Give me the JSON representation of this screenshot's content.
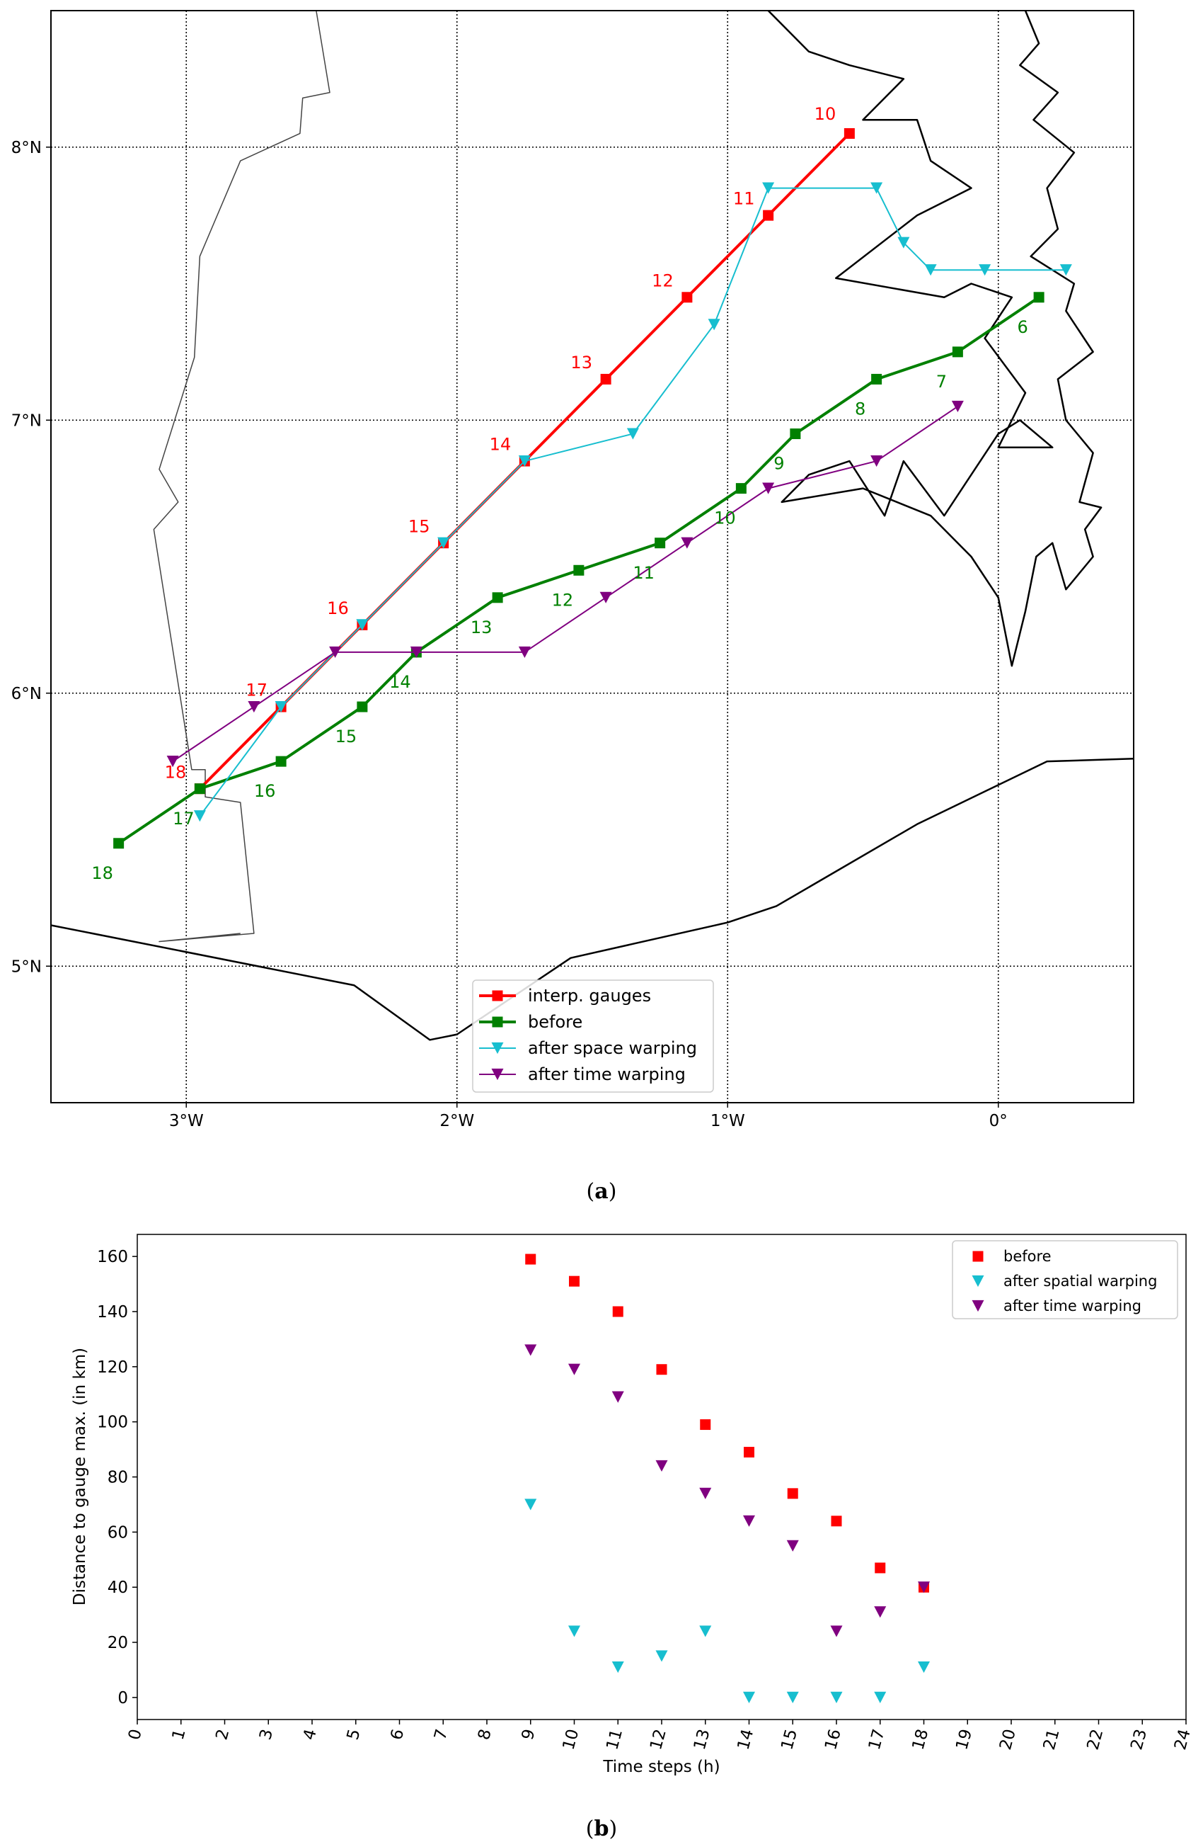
{
  "chart_data": [
    {
      "id": "a",
      "type": "line",
      "caption": {
        "open": "(",
        "letter": "a",
        "close": ")"
      },
      "xlim": [
        -3.5,
        0.5
      ],
      "ylim": [
        4.5,
        8.5
      ],
      "grid": true,
      "x_ticks": [
        {
          "value": -3,
          "label": "3°W"
        },
        {
          "value": -2,
          "label": "2°W"
        },
        {
          "value": -1,
          "label": "1°W"
        },
        {
          "value": 0,
          "label": "0°"
        }
      ],
      "y_ticks": [
        {
          "value": 5,
          "label": "5°N"
        },
        {
          "value": 6,
          "label": "6°N"
        },
        {
          "value": 7,
          "label": "7°N"
        },
        {
          "value": 8,
          "label": "8°N"
        }
      ],
      "legend_position": "lower-center",
      "series": [
        {
          "name": "interp. gauges",
          "color": "#ff0000",
          "marker": "square",
          "width": 4,
          "x": [
            -0.55,
            -0.85,
            -1.15,
            -1.45,
            -1.75,
            -2.05,
            -2.35,
            -2.65,
            -2.95
          ],
          "y": [
            8.05,
            7.75,
            7.45,
            7.15,
            6.85,
            6.55,
            6.25,
            5.95,
            5.65
          ]
        },
        {
          "name": "before",
          "color": "#008000",
          "marker": "square",
          "width": 4,
          "x": [
            0.15,
            -0.15,
            -0.45,
            -0.75,
            -0.95,
            -1.25,
            -1.55,
            -1.85,
            -2.15,
            -2.35,
            -2.65,
            -2.95,
            -3.25
          ],
          "y": [
            7.45,
            7.25,
            7.15,
            6.95,
            6.75,
            6.55,
            6.45,
            6.35,
            6.15,
            5.95,
            5.75,
            5.65,
            5.45
          ]
        },
        {
          "name": "after space warping",
          "color": "#17becf",
          "marker": "triangle-down",
          "width": 2,
          "x": [
            0.25,
            -0.05,
            -0.25,
            -0.35,
            -0.45,
            -0.85,
            -1.05,
            -1.35,
            -1.75,
            -2.05,
            -2.35,
            -2.65,
            -2.95
          ],
          "y": [
            7.55,
            7.55,
            7.55,
            7.65,
            7.85,
            7.85,
            7.35,
            6.95,
            6.85,
            6.55,
            6.25,
            5.95,
            5.55
          ]
        },
        {
          "name": "after time warping",
          "color": "#800080",
          "marker": "triangle-down",
          "width": 2,
          "x": [
            -0.15,
            -0.45,
            -0.85,
            -1.15,
            -1.45,
            -1.75,
            -2.15,
            -2.45,
            -2.75,
            -3.05
          ],
          "y": [
            7.05,
            6.85,
            6.75,
            6.55,
            6.35,
            6.15,
            6.15,
            6.15,
            5.95,
            5.75
          ]
        }
      ],
      "annotations": [
        {
          "text": "10",
          "x": -0.64,
          "y": 8.1,
          "color": "#ff0000"
        },
        {
          "text": "11",
          "x": -0.94,
          "y": 7.79,
          "color": "#ff0000"
        },
        {
          "text": "12",
          "x": -1.24,
          "y": 7.49,
          "color": "#ff0000"
        },
        {
          "text": "13",
          "x": -1.54,
          "y": 7.19,
          "color": "#ff0000"
        },
        {
          "text": "14",
          "x": -1.84,
          "y": 6.89,
          "color": "#ff0000"
        },
        {
          "text": "15",
          "x": -2.14,
          "y": 6.59,
          "color": "#ff0000"
        },
        {
          "text": "16",
          "x": -2.44,
          "y": 6.29,
          "color": "#ff0000"
        },
        {
          "text": "17",
          "x": -2.74,
          "y": 5.99,
          "color": "#ff0000"
        },
        {
          "text": "18",
          "x": -3.04,
          "y": 5.69,
          "color": "#ff0000"
        },
        {
          "text": "6",
          "x": 0.09,
          "y": 7.32,
          "color": "#008000"
        },
        {
          "text": "7",
          "x": -0.21,
          "y": 7.12,
          "color": "#008000"
        },
        {
          "text": "8",
          "x": -0.51,
          "y": 7.02,
          "color": "#008000"
        },
        {
          "text": "9",
          "x": -0.81,
          "y": 6.82,
          "color": "#008000"
        },
        {
          "text": "10",
          "x": -1.01,
          "y": 6.62,
          "color": "#008000"
        },
        {
          "text": "11",
          "x": -1.31,
          "y": 6.42,
          "color": "#008000"
        },
        {
          "text": "12",
          "x": -1.61,
          "y": 6.32,
          "color": "#008000"
        },
        {
          "text": "13",
          "x": -1.91,
          "y": 6.22,
          "color": "#008000"
        },
        {
          "text": "14",
          "x": -2.21,
          "y": 6.02,
          "color": "#008000"
        },
        {
          "text": "15",
          "x": -2.41,
          "y": 5.82,
          "color": "#008000"
        },
        {
          "text": "16",
          "x": -2.71,
          "y": 5.62,
          "color": "#008000"
        },
        {
          "text": "17",
          "x": -3.01,
          "y": 5.52,
          "color": "#008000"
        },
        {
          "text": "18",
          "x": -3.31,
          "y": 5.32,
          "color": "#008000"
        }
      ],
      "map_lines": [
        {
          "name": "western-border",
          "color": "#444444",
          "width": 1.5,
          "points": [
            [
              -2.52,
              8.5
            ],
            [
              -2.47,
              8.2
            ],
            [
              -2.57,
              8.18
            ],
            [
              -2.58,
              8.05
            ],
            [
              -2.8,
              7.95
            ],
            [
              -2.95,
              7.6
            ],
            [
              -2.97,
              7.23
            ],
            [
              -3.1,
              6.82
            ],
            [
              -3.03,
              6.7
            ],
            [
              -3.12,
              6.6
            ],
            [
              -2.98,
              5.72
            ],
            [
              -2.93,
              5.72
            ],
            [
              -2.93,
              5.62
            ],
            [
              -2.8,
              5.6
            ],
            [
              -2.75,
              5.12
            ],
            [
              -3.1,
              5.09
            ],
            [
              -2.8,
              5.12
            ]
          ]
        },
        {
          "name": "coastline",
          "color": "#000000",
          "width": 2.5,
          "points": [
            [
              -3.5,
              5.15
            ],
            [
              -2.38,
              4.93
            ],
            [
              -2.1,
              4.73
            ],
            [
              -2.0,
              4.75
            ],
            [
              -1.58,
              5.03
            ],
            [
              -1.0,
              5.16
            ],
            [
              -0.82,
              5.22
            ],
            [
              -0.3,
              5.52
            ],
            [
              0.18,
              5.75
            ],
            [
              0.5,
              5.76
            ]
          ]
        },
        {
          "name": "eastern-border",
          "color": "#000000",
          "width": 2.5,
          "points": [
            [
              0.1,
              8.5
            ],
            [
              0.15,
              8.38
            ],
            [
              0.08,
              8.3
            ],
            [
              0.22,
              8.2
            ],
            [
              0.13,
              8.1
            ],
            [
              0.28,
              7.98
            ],
            [
              0.18,
              7.85
            ],
            [
              0.22,
              7.7
            ],
            [
              0.12,
              7.6
            ],
            [
              0.28,
              7.5
            ],
            [
              0.25,
              7.4
            ],
            [
              0.35,
              7.25
            ],
            [
              0.22,
              7.15
            ],
            [
              0.25,
              7.0
            ],
            [
              0.35,
              6.88
            ],
            [
              0.3,
              6.7
            ],
            [
              0.38,
              6.68
            ],
            [
              0.32,
              6.6
            ],
            [
              0.35,
              6.5
            ],
            [
              0.25,
              6.38
            ],
            [
              0.2,
              6.55
            ],
            [
              0.14,
              6.5
            ],
            [
              0.1,
              6.3
            ],
            [
              0.05,
              6.1
            ],
            [
              0.0,
              6.35
            ],
            [
              -0.1,
              6.5
            ],
            [
              -0.25,
              6.65
            ],
            [
              -0.5,
              6.75
            ],
            [
              -0.8,
              6.7
            ],
            [
              -0.7,
              6.8
            ],
            [
              -0.55,
              6.85
            ],
            [
              -0.42,
              6.65
            ],
            [
              -0.35,
              6.85
            ],
            [
              -0.2,
              6.65
            ],
            [
              -0.1,
              6.8
            ],
            [
              0.0,
              6.95
            ],
            [
              0.08,
              7.0
            ],
            [
              0.2,
              6.9
            ],
            [
              0.0,
              6.9
            ],
            [
              0.1,
              7.1
            ],
            [
              -0.05,
              7.3
            ],
            [
              0.05,
              7.45
            ],
            [
              -0.1,
              7.5
            ],
            [
              -0.2,
              7.45
            ],
            [
              -0.6,
              7.52
            ],
            [
              -0.3,
              7.75
            ],
            [
              -0.1,
              7.85
            ],
            [
              -0.25,
              7.95
            ],
            [
              -0.3,
              8.1
            ],
            [
              -0.5,
              8.1
            ],
            [
              -0.35,
              8.25
            ],
            [
              -0.55,
              8.3
            ],
            [
              -0.7,
              8.35
            ],
            [
              -0.85,
              8.5
            ]
          ]
        }
      ]
    },
    {
      "id": "b",
      "type": "scatter",
      "caption": {
        "open": "(",
        "letter": "b",
        "close": ")"
      },
      "xlabel": "Time steps (h)",
      "ylabel": "Distance to gauge max. (in km)",
      "xlim": [
        0,
        24
      ],
      "ylim": [
        -8,
        168
      ],
      "x_ticks": [
        "0",
        "1",
        "2",
        "3",
        "4",
        "5",
        "6",
        "7",
        "8",
        "9",
        "10",
        "11",
        "12",
        "13",
        "14",
        "15",
        "16",
        "17",
        "18",
        "19",
        "20",
        "21",
        "22",
        "23",
        "24"
      ],
      "y_ticks": [
        "0",
        "20",
        "40",
        "60",
        "80",
        "100",
        "120",
        "140",
        "160"
      ],
      "grid": false,
      "legend_position": "top-right",
      "series": [
        {
          "name": "before",
          "color": "#ff0000",
          "marker": "square",
          "x": [
            9,
            10,
            11,
            12,
            13,
            14,
            15,
            16,
            17,
            18
          ],
          "y": [
            159,
            151,
            140,
            119,
            99,
            89,
            74,
            64,
            47,
            40
          ]
        },
        {
          "name": "after spatial warping",
          "color": "#17becf",
          "marker": "triangle-down",
          "x": [
            9,
            10,
            11,
            12,
            13,
            14,
            15,
            16,
            17,
            18
          ],
          "y": [
            70,
            24,
            11,
            15,
            24,
            0,
            0,
            0,
            0,
            11
          ]
        },
        {
          "name": "after time warping",
          "color": "#800080",
          "marker": "triangle-down",
          "x": [
            9,
            10,
            11,
            12,
            13,
            14,
            15,
            16,
            17,
            18
          ],
          "y": [
            126,
            119,
            109,
            84,
            74,
            64,
            55,
            24,
            31,
            40
          ]
        }
      ]
    }
  ]
}
